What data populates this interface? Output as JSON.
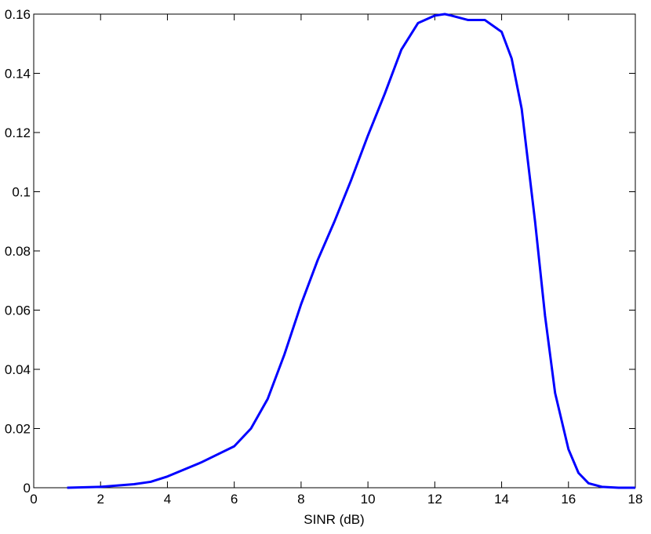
{
  "chart_data": {
    "type": "line",
    "xlabel": "SINR (dB)",
    "x": [
      1,
      2,
      3,
      3.5,
      4,
      5,
      6,
      6.5,
      7,
      7.5,
      8,
      8.5,
      9,
      9.5,
      10,
      10.5,
      11,
      11.5,
      12,
      12.3,
      12.5,
      13,
      13.5,
      14,
      14.3,
      14.6,
      15,
      15.3,
      15.6,
      16,
      16.3,
      16.6,
      17,
      17.5,
      18
    ],
    "series": [
      {
        "color": "#0000ff",
        "values": [
          0,
          0.0003,
          0.0012,
          0.002,
          0.0038,
          0.0085,
          0.014,
          0.02,
          0.03,
          0.045,
          0.062,
          0.077,
          0.09,
          0.104,
          0.119,
          0.133,
          0.148,
          0.157,
          0.1595,
          0.16,
          0.1595,
          0.158,
          0.158,
          0.154,
          0.145,
          0.128,
          0.09,
          0.058,
          0.032,
          0.013,
          0.005,
          0.0015,
          0.0003,
          0,
          0
        ]
      }
    ],
    "xlim": [
      0,
      18
    ],
    "xticks": [
      0,
      2,
      4,
      6,
      8,
      10,
      12,
      14,
      16,
      18
    ],
    "ylim": [
      0,
      0.16
    ],
    "yticks": [
      0,
      0.02,
      0.04,
      0.06,
      0.08,
      0.1,
      0.12,
      0.14,
      0.16
    ],
    "grid": false
  }
}
